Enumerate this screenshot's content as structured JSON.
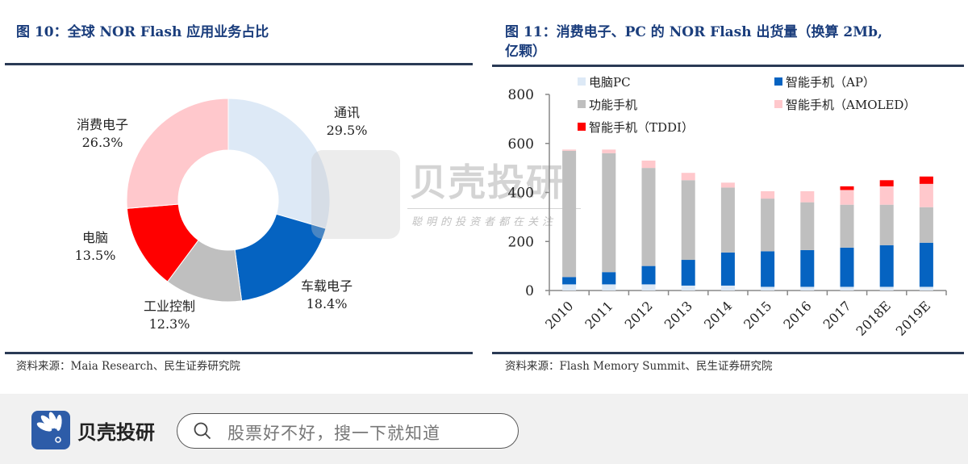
{
  "left_panel": {
    "title": "图 10：全球 NOR Flash  应用业务占比",
    "source": "资料来源：Maia Research、民生证券研究院"
  },
  "right_panel": {
    "title_line1": "图 11：消费电子、PC 的 NOR Flash  出货量（换算 2Mb,",
    "title_line2": "亿颗）",
    "source": "资料来源：Flash Memory Summit、民生证券研究院"
  },
  "watermark": {
    "brand": "贝壳投研",
    "slogan": "聪明的投资者都在关注"
  },
  "bottom_bar": {
    "brand_name": "贝壳投研",
    "logo_icon": "shell-fan-icon",
    "search_icon": "search-icon",
    "search_placeholder": "股票好不好，搜一下就知道"
  },
  "chart_data": [
    {
      "type": "pie",
      "variant": "donut",
      "title": "全球 NOR Flash 应用业务占比",
      "categories": [
        "通讯",
        "车载电子",
        "工业控制",
        "电脑",
        "消费电子"
      ],
      "values": [
        29.5,
        18.4,
        12.3,
        13.5,
        26.3
      ],
      "labels": [
        "29.5%",
        "18.4%",
        "12.3%",
        "13.5%",
        "26.3%"
      ],
      "colors": [
        "#dde9f6",
        "#0563c1",
        "#bfbfbf",
        "#ff0000",
        "#ffc8cc"
      ],
      "unit": "%"
    },
    {
      "type": "bar",
      "stacked": true,
      "title": "消费电子、PC 的 NOR Flash 出货量（换算 2Mb, 亿颗）",
      "xlabel": "",
      "ylabel": "",
      "ylim": [
        0,
        800
      ],
      "yticks": [
        0,
        200,
        400,
        600,
        800
      ],
      "grid": false,
      "legend_position": "top",
      "categories": [
        "2010",
        "2011",
        "2012",
        "2013",
        "2014",
        "2015",
        "2016",
        "2017",
        "2018E",
        "2019E"
      ],
      "series": [
        {
          "name": "电脑PC",
          "color": "#dde9f6",
          "values": [
            25,
            25,
            25,
            20,
            20,
            15,
            15,
            15,
            15,
            15
          ]
        },
        {
          "name": "智能手机（AP）",
          "color": "#0563c1",
          "values": [
            30,
            50,
            75,
            105,
            135,
            145,
            150,
            160,
            170,
            180
          ]
        },
        {
          "name": "功能手机",
          "color": "#bfbfbf",
          "values": [
            515,
            485,
            400,
            325,
            265,
            215,
            195,
            175,
            165,
            145
          ]
        },
        {
          "name": "智能手机（AMOLED）",
          "color": "#ffc8cc",
          "values": [
            5,
            15,
            30,
            30,
            20,
            30,
            45,
            60,
            75,
            95
          ]
        },
        {
          "name": "智能手机（TDDI）",
          "color": "#ff0000",
          "values": [
            0,
            0,
            0,
            0,
            0,
            0,
            0,
            15,
            25,
            30
          ]
        }
      ]
    }
  ]
}
